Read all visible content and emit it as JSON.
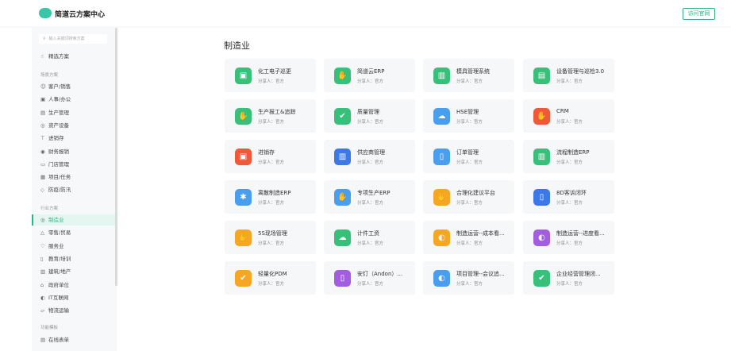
{
  "header": {
    "title": "简道云方案中心",
    "visit_button": "访问官网",
    "logo_color": "#3cc6a8"
  },
  "sidebar": {
    "search_placeholder": "输入关键词搜索方案",
    "featured": "精选方案",
    "groups": [
      {
        "label": "场景方案",
        "items": [
          "客户/销售",
          "人事/办公",
          "生产管理",
          "资产设备",
          "进销存",
          "财务报销",
          "门店管理",
          "项目/任务",
          "防疫/防汛"
        ]
      },
      {
        "label": "行业方案",
        "items": [
          "制造业",
          "零售/贸易",
          "服务业",
          "教育/培训",
          "建筑/地产",
          "政府单位",
          "IT互联网",
          "物流运输"
        ]
      },
      {
        "label": "功能模板",
        "items": [
          "在线表单"
        ]
      }
    ],
    "active": "制造业"
  },
  "main": {
    "title": "制造业",
    "sharer": "分享人：官方",
    "cards": [
      {
        "name": "化工电子巡更",
        "color": "#36c07a"
      },
      {
        "name": "简道云ERP",
        "color": "#36c07a"
      },
      {
        "name": "模具管理系统",
        "color": "#36c07a"
      },
      {
        "name": "设备管理与巡检3.0",
        "color": "#36c07a"
      },
      {
        "name": "生产报工&追踪",
        "color": "#36c07a"
      },
      {
        "name": "质量管理",
        "color": "#36c07a"
      },
      {
        "name": "HSE管理",
        "color": "#4a9ef0"
      },
      {
        "name": "CRM",
        "color": "#f0583a"
      },
      {
        "name": "进销存",
        "color": "#f0583a"
      },
      {
        "name": "供应商管理",
        "color": "#3b78e8"
      },
      {
        "name": "订单管理",
        "color": "#4a9ef0"
      },
      {
        "name": "流程制造ERP",
        "color": "#36c07a"
      },
      {
        "name": "离散制造ERP",
        "color": "#4a9ef0"
      },
      {
        "name": "专项生产ERP",
        "color": "#4a9ef0"
      },
      {
        "name": "合理化建议平台",
        "color": "#f5a623"
      },
      {
        "name": "8D客诉闭环",
        "color": "#3b78e8"
      },
      {
        "name": "5S现场管理",
        "color": "#f5a623"
      },
      {
        "name": "计件工资",
        "color": "#36c07a"
      },
      {
        "name": "制造运营--成本看...",
        "color": "#f5a623"
      },
      {
        "name": "制造运营--进度看...",
        "color": "#a35ee0"
      },
      {
        "name": "轻量化PDM",
        "color": "#f5a623"
      },
      {
        "name": "安灯（Andon）...",
        "color": "#a35ee0"
      },
      {
        "name": "项目管理--会议追...",
        "color": "#4a9ef0"
      },
      {
        "name": "企业经营管理闭...",
        "color": "#36c07a"
      }
    ]
  }
}
